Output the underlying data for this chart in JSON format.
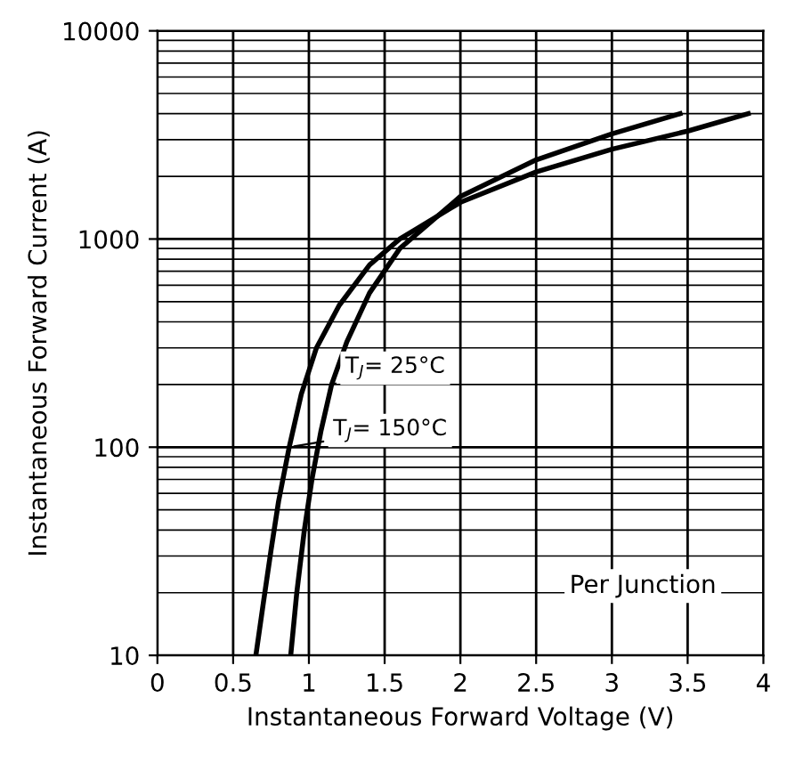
{
  "chart_data": {
    "type": "line",
    "xlabel": "Instantaneous Forward Voltage (V)",
    "ylabel": "Instantaneous Forward Current (A)",
    "series": [
      {
        "name": "T$_{J}$= 25°C",
        "color": "#000000",
        "x": [
          0.88,
          0.92,
          0.97,
          1.02,
          1.08,
          1.15,
          1.25,
          1.4,
          1.6,
          2.0,
          2.5,
          3.0,
          3.45
        ],
        "values": [
          10,
          20,
          40,
          70,
          120,
          200,
          320,
          550,
          900,
          1600,
          2400,
          3200,
          4000
        ]
      },
      {
        "name": "T$_{J}$= 150°C",
        "color": "#000000",
        "x": [
          0.65,
          0.7,
          0.75,
          0.8,
          0.87,
          0.95,
          1.05,
          1.2,
          1.4,
          1.6,
          2.0,
          2.5,
          3.0,
          3.5,
          3.9
        ],
        "values": [
          10,
          18,
          32,
          55,
          100,
          180,
          300,
          480,
          750,
          1000,
          1500,
          2100,
          2700,
          3300,
          4000
        ]
      }
    ],
    "annotations": [
      "Per Junction"
    ],
    "log": "y",
    "xlim": [
      0,
      4
    ],
    "ylim": [
      10,
      10000
    ],
    "xticks": [
      0,
      0.5,
      1,
      1.5,
      2,
      2.5,
      3,
      3.5,
      4
    ],
    "yticks": [
      10,
      100,
      1000,
      10000
    ],
    "grid": true,
    "line_style": "solid",
    "marker": "none",
    "legend": "center"
  }
}
